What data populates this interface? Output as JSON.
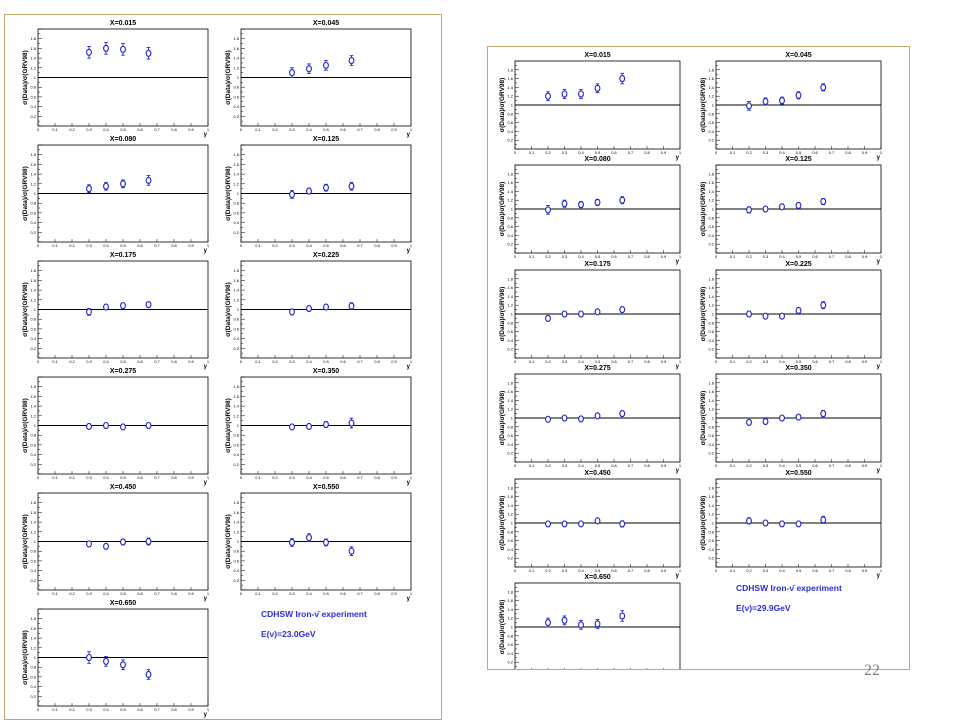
{
  "colors": {
    "marker": "#1f25c8",
    "annotation": "#2a2ed8",
    "frame": "#c6a86e",
    "axis": "#000000"
  },
  "slide_number": "22",
  "chart_data": [
    {
      "type": "scatter",
      "ylabel": "σ(Data)/σ(GRV98)",
      "xlabel": "y",
      "xlim": [
        0,
        1
      ],
      "ylim": [
        0,
        2
      ],
      "reference_line": 1.0,
      "annotation": {
        "line1": "CDHSW Iron-ν̄ experiment",
        "line2": "E(ν)=23.0GeV"
      },
      "panels": [
        {
          "title": "X=0.015",
          "x": [
            0.3,
            0.4,
            0.5,
            0.65
          ],
          "y": [
            1.52,
            1.6,
            1.58,
            1.5
          ],
          "err": [
            0.12,
            0.12,
            0.12,
            0.12
          ]
        },
        {
          "title": "X=0.045",
          "x": [
            0.3,
            0.4,
            0.5,
            0.65
          ],
          "y": [
            1.1,
            1.18,
            1.25,
            1.35
          ],
          "err": [
            0.1,
            0.1,
            0.1,
            0.1
          ]
        },
        {
          "title": "X=0.080",
          "x": [
            0.3,
            0.4,
            0.5,
            0.65
          ],
          "y": [
            1.1,
            1.15,
            1.2,
            1.27
          ],
          "err": [
            0.08,
            0.08,
            0.08,
            0.1
          ]
        },
        {
          "title": "X=0.125",
          "x": [
            0.3,
            0.4,
            0.5,
            0.65
          ],
          "y": [
            0.98,
            1.05,
            1.12,
            1.15
          ],
          "err": [
            0.08,
            0.06,
            0.07,
            0.08
          ]
        },
        {
          "title": "X=0.175",
          "x": [
            0.3,
            0.4,
            0.5,
            0.65
          ],
          "y": [
            0.95,
            1.05,
            1.08,
            1.1
          ],
          "err": [
            0.07,
            0.05,
            0.05,
            0.05
          ]
        },
        {
          "title": "X=0.225",
          "x": [
            0.3,
            0.4,
            0.5,
            0.65
          ],
          "y": [
            0.95,
            1.02,
            1.05,
            1.07
          ],
          "err": [
            0.06,
            0.05,
            0.05,
            0.07
          ]
        },
        {
          "title": "X=0.275",
          "x": [
            0.3,
            0.4,
            0.5,
            0.65
          ],
          "y": [
            0.98,
            1.0,
            0.97,
            1.0
          ],
          "err": [
            0.04,
            0.04,
            0.04,
            0.05
          ]
        },
        {
          "title": "X=0.350",
          "x": [
            0.3,
            0.4,
            0.5,
            0.65
          ],
          "y": [
            0.97,
            0.98,
            1.02,
            1.05
          ],
          "err": [
            0.04,
            0.04,
            0.06,
            0.1
          ]
        },
        {
          "title": "X=0.450",
          "x": [
            0.3,
            0.4,
            0.5,
            0.65
          ],
          "y": [
            0.95,
            0.9,
            0.99,
            1.0
          ],
          "err": [
            0.04,
            0.04,
            0.05,
            0.07
          ]
        },
        {
          "title": "X=0.550",
          "x": [
            0.3,
            0.4,
            0.5,
            0.65
          ],
          "y": [
            0.98,
            1.08,
            0.98,
            0.8
          ],
          "err": [
            0.08,
            0.08,
            0.07,
            0.09
          ]
        },
        {
          "title": "X=0.650",
          "x": [
            0.3,
            0.4,
            0.5,
            0.65
          ],
          "y": [
            1.0,
            0.92,
            0.85,
            0.65
          ],
          "err": [
            0.12,
            0.1,
            0.1,
            0.1
          ]
        }
      ]
    },
    {
      "type": "scatter",
      "ylabel": "σ(Data)/σ(GRV98)",
      "xlabel": "y",
      "xlim": [
        0,
        1
      ],
      "ylim": [
        0,
        2
      ],
      "reference_line": 1.0,
      "annotation": {
        "line1": "CDHSW Iron-ν̄ experiment",
        "line2": "E(ν)=29.9GeV"
      },
      "panels": [
        {
          "title": "X=0.015",
          "x": [
            0.2,
            0.3,
            0.4,
            0.5,
            0.65
          ],
          "y": [
            1.2,
            1.25,
            1.25,
            1.38,
            1.6
          ],
          "err": [
            0.1,
            0.1,
            0.1,
            0.1,
            0.12
          ]
        },
        {
          "title": "X=0.045",
          "x": [
            0.2,
            0.3,
            0.4,
            0.5,
            0.65
          ],
          "y": [
            0.98,
            1.08,
            1.1,
            1.22,
            1.4
          ],
          "err": [
            0.1,
            0.08,
            0.08,
            0.08,
            0.08
          ]
        },
        {
          "title": "X=0.080",
          "x": [
            0.2,
            0.3,
            0.4,
            0.5,
            0.65
          ],
          "y": [
            0.98,
            1.12,
            1.1,
            1.15,
            1.2
          ],
          "err": [
            0.1,
            0.08,
            0.07,
            0.07,
            0.08
          ]
        },
        {
          "title": "X=0.125",
          "x": [
            0.2,
            0.3,
            0.4,
            0.5,
            0.65
          ],
          "y": [
            0.98,
            1.0,
            1.05,
            1.08,
            1.17
          ],
          "err": [
            0.07,
            0.06,
            0.06,
            0.06,
            0.07
          ]
        },
        {
          "title": "X=0.175",
          "x": [
            0.2,
            0.3,
            0.4,
            0.5,
            0.65
          ],
          "y": [
            0.9,
            1.0,
            1.0,
            1.05,
            1.1
          ],
          "err": [
            0.06,
            0.05,
            0.05,
            0.05,
            0.06
          ]
        },
        {
          "title": "X=0.225",
          "x": [
            0.2,
            0.3,
            0.4,
            0.5,
            0.65
          ],
          "y": [
            1.0,
            0.95,
            0.95,
            1.08,
            1.2
          ],
          "err": [
            0.06,
            0.05,
            0.05,
            0.06,
            0.08
          ]
        },
        {
          "title": "X=0.275",
          "x": [
            0.2,
            0.3,
            0.4,
            0.5,
            0.65
          ],
          "y": [
            0.97,
            1.0,
            0.98,
            1.05,
            1.1
          ],
          "err": [
            0.04,
            0.04,
            0.04,
            0.04,
            0.06
          ]
        },
        {
          "title": "X=0.350",
          "x": [
            0.2,
            0.3,
            0.4,
            0.5,
            0.65
          ],
          "y": [
            0.9,
            0.92,
            1.0,
            1.02,
            1.1
          ],
          "err": [
            0.04,
            0.04,
            0.04,
            0.04,
            0.07
          ]
        },
        {
          "title": "X=0.450",
          "x": [
            0.2,
            0.3,
            0.4,
            0.5,
            0.65
          ],
          "y": [
            0.98,
            0.98,
            0.98,
            1.05,
            0.98
          ],
          "err": [
            0.05,
            0.04,
            0.04,
            0.05,
            0.07
          ]
        },
        {
          "title": "X=0.550",
          "x": [
            0.2,
            0.3,
            0.4,
            0.5,
            0.65
          ],
          "y": [
            1.05,
            1.0,
            0.98,
            0.98,
            1.07
          ],
          "err": [
            0.07,
            0.06,
            0.06,
            0.05,
            0.08
          ]
        },
        {
          "title": "X=0.650",
          "x": [
            0.2,
            0.3,
            0.4,
            0.5,
            0.65
          ],
          "y": [
            1.1,
            1.15,
            1.05,
            1.07,
            1.25
          ],
          "err": [
            0.1,
            0.1,
            0.1,
            0.1,
            0.12
          ]
        }
      ]
    }
  ]
}
